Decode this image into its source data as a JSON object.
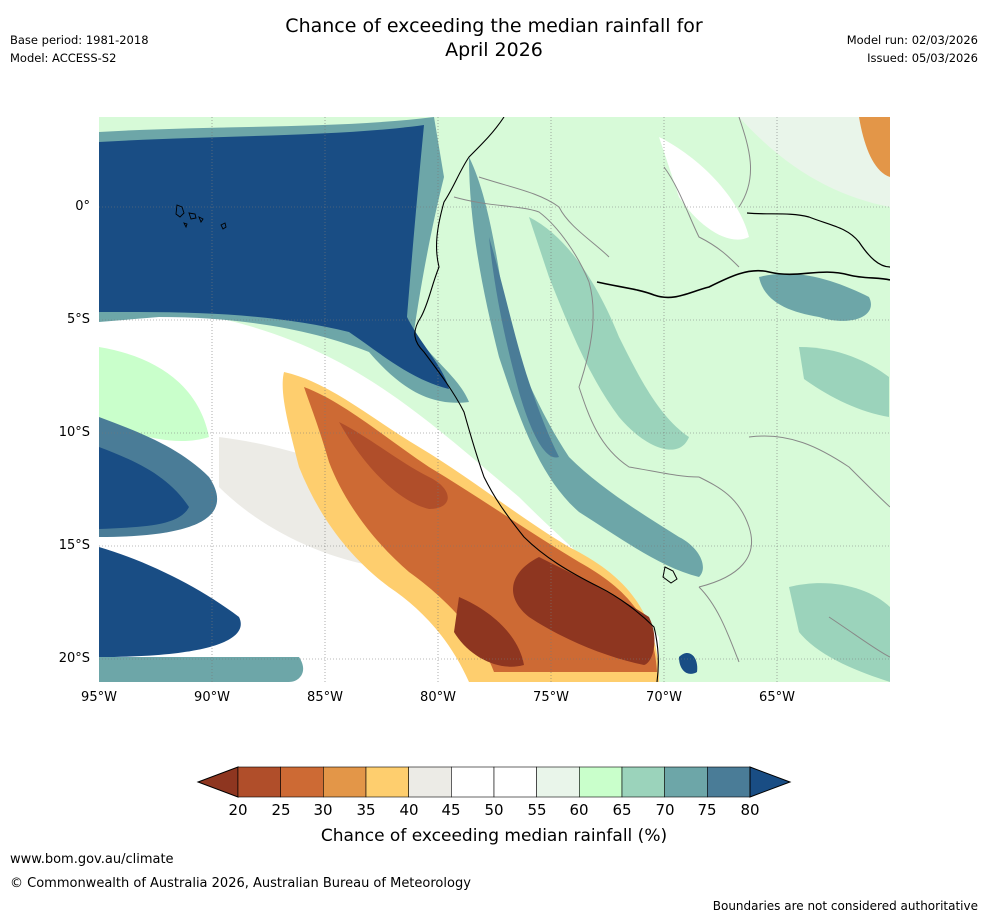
{
  "title_line1": "Chance of exceeding the median rainfall for",
  "title_line2": "April 2026",
  "base_period": "Base period: 1981-2018",
  "model": "Model: ACCESS-S2",
  "model_run": "Model run: 02/03/2026",
  "issued": "Issued: 05/03/2026",
  "lat_labels": [
    "0°",
    "5°S",
    "10°S",
    "15°S",
    "20°S"
  ],
  "lon_labels": [
    "95°W",
    "90°W",
    "85°W",
    "80°W",
    "75°W",
    "70°W",
    "65°W"
  ],
  "colorbar": {
    "ticks": [
      "20",
      "25",
      "30",
      "35",
      "40",
      "45",
      "50",
      "55",
      "60",
      "65",
      "70",
      "75",
      "80"
    ],
    "colors": [
      "#8e3620",
      "#b04e2a",
      "#cd6a34",
      "#e39648",
      "#fece6e",
      "#ecebe6",
      "#ffffff",
      "#ffffff",
      "#e9f5ea",
      "#c9ffcb",
      "#9bd3bb",
      "#6da6a8",
      "#4a7c97",
      "#194d84"
    ],
    "label": "Chance of exceeding median rainfall (%)"
  },
  "footer_url": "www.bom.gov.au/climate",
  "copyright": "© Commonwealth of Australia 2026, Australian Bureau of Meteorology",
  "disclaimer": "Boundaries are not considered authoritative"
}
